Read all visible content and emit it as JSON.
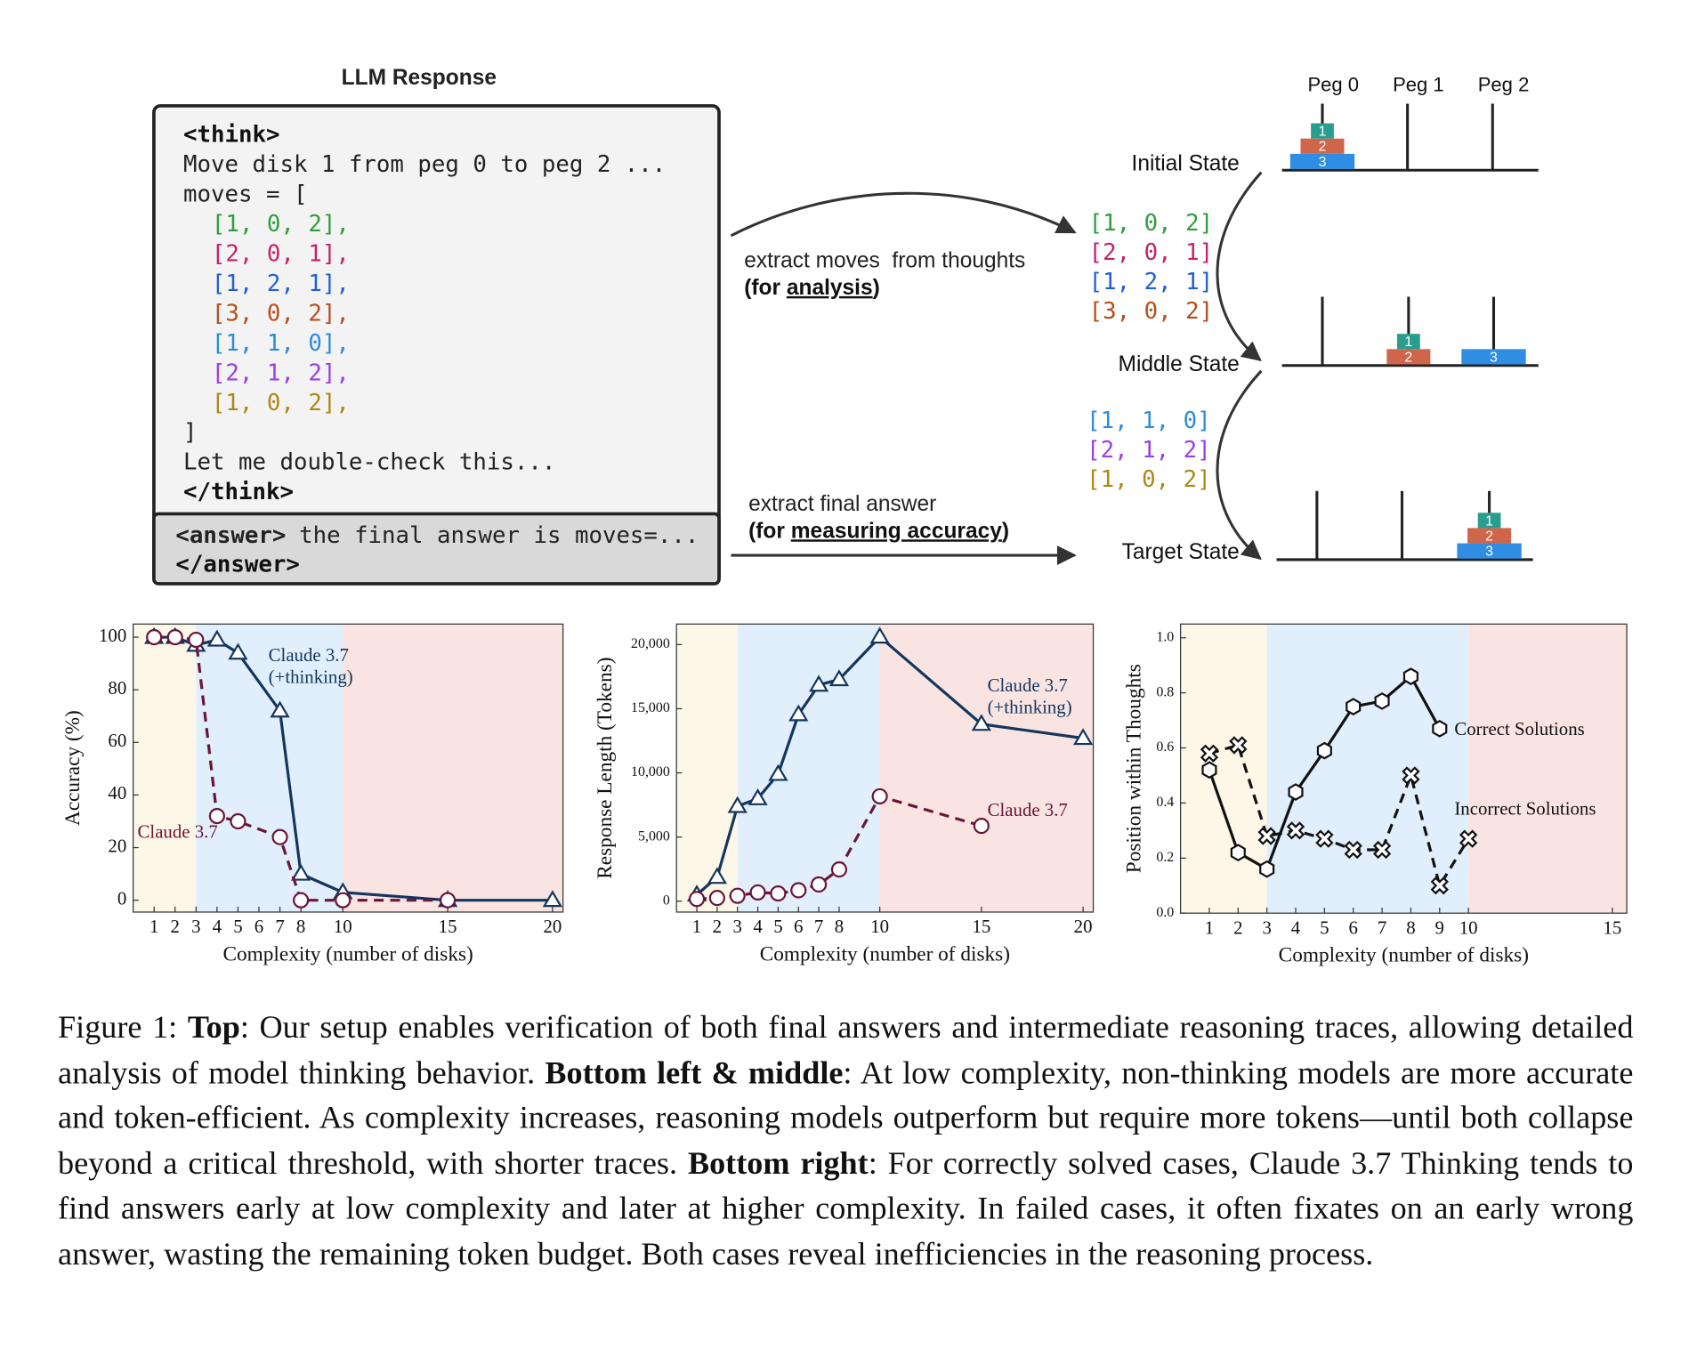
{
  "llm_response": {
    "title": "LLM Response",
    "think_open": "<think>",
    "preamble": [
      "Move disk 1 from peg 0 to peg 2 ...",
      "moves = ["
    ],
    "moves": [
      {
        "text": "[1, 0, 2],",
        "color": "#2e9e3e"
      },
      {
        "text": "[2, 0, 1],",
        "color": "#c4236b"
      },
      {
        "text": "[1, 2, 1],",
        "color": "#1f5fd6"
      },
      {
        "text": "[3, 0, 2],",
        "color": "#b4501e"
      },
      {
        "text": "[1, 1, 0],",
        "color": "#2b8ddb"
      },
      {
        "text": "[2, 1, 2],",
        "color": "#9a3fe4"
      },
      {
        "text": "[1, 0, 2],",
        "color": "#ad8813"
      }
    ],
    "postamble": [
      "]",
      "Let me double-check this..."
    ],
    "think_close": "</think>",
    "answer_open": "<answer>",
    "answer_text": "the final answer is moves=...",
    "answer_close": "</answer>"
  },
  "extract_moves": {
    "label": "extract moves  from thoughts",
    "note_prefix": "(for ",
    "note_key": "analysis",
    "note_suffix": ")"
  },
  "extract_answer": {
    "label": "extract final answer",
    "note_prefix": "(for ",
    "note_key": "measuring accuracy",
    "note_suffix": ")"
  },
  "extracted_moves": [
    {
      "text": "[1, 0, 2]",
      "color": "#2e9e3e"
    },
    {
      "text": "[2, 0, 1]",
      "color": "#c4236b"
    },
    {
      "text": "[1, 2, 1]",
      "color": "#1f5fd6"
    },
    {
      "text": "[3, 0, 2]",
      "color": "#b4501e"
    },
    {
      "text": "[1, 1, 0]",
      "color": "#2b8ddb"
    },
    {
      "text": "[2, 1, 2]",
      "color": "#9a3fe4"
    },
    {
      "text": "[1, 0, 2]",
      "color": "#ad8813"
    }
  ],
  "hanoi": {
    "pegs": [
      "Peg 0",
      "Peg 1",
      "Peg 2"
    ],
    "disk_colors": {
      "1": "#2a9d8f",
      "2": "#cf654b",
      "3": "#2f8de4"
    },
    "states": [
      {
        "name": "Initial State",
        "disks": [
          [
            3,
            2,
            1
          ],
          [],
          []
        ]
      },
      {
        "name": "Middle State",
        "disks": [
          [],
          [
            2,
            1
          ],
          [
            3
          ]
        ]
      },
      {
        "name": "Target State",
        "disks": [
          [],
          [],
          [
            3,
            2,
            1
          ]
        ]
      }
    ]
  },
  "chart_data": [
    {
      "type": "line",
      "xlabel": "Complexity (number of disks)",
      "ylabel": "Accuracy (%)",
      "xlim": [
        0,
        20.5
      ],
      "ylim": [
        -4.5,
        105
      ],
      "xticks": [
        1,
        2,
        3,
        4,
        5,
        6,
        7,
        8,
        10,
        15,
        20
      ],
      "yticks": [
        0,
        20,
        40,
        60,
        80,
        100
      ],
      "shaded_regions": [
        {
          "from": 0,
          "to": 3,
          "color": "#fdf7e7"
        },
        {
          "from": 3,
          "to": 10,
          "color": "#e0effb"
        },
        {
          "from": 10,
          "to": 20.5,
          "color": "#f9e4e2"
        }
      ],
      "series": [
        {
          "label_lines": [
            "Claude 3.7",
            "(+thinking)"
          ],
          "color": "#14365e",
          "marker": "triangle",
          "dashed": false,
          "x": [
            1,
            2,
            3,
            4,
            5,
            7,
            8,
            10,
            15,
            20
          ],
          "values": [
            100,
            100,
            97,
            99,
            94,
            72,
            10,
            3,
            0,
            0
          ]
        },
        {
          "label_lines": [
            "Claude 3.7"
          ],
          "color": "#6b1538",
          "marker": "circle",
          "dashed": true,
          "x": [
            1,
            2,
            3,
            4,
            5,
            7,
            8,
            10,
            15
          ],
          "values": [
            100,
            100,
            99,
            32,
            30,
            24,
            0,
            0,
            0
          ]
        }
      ]
    },
    {
      "type": "line",
      "xlabel": "Complexity (number of disks)",
      "ylabel": "Response Length (Tokens)",
      "xlim": [
        0,
        20.5
      ],
      "ylim": [
        -850,
        21600
      ],
      "xticks": [
        1,
        2,
        3,
        4,
        5,
        6,
        7,
        8,
        10,
        15,
        20
      ],
      "yticks": [
        0,
        {
          "value": 5000,
          "label": "5,000"
        },
        {
          "value": 10000,
          "label": "10,000"
        },
        {
          "value": 15000,
          "label": "15,000"
        },
        {
          "value": 20000,
          "label": "20,000"
        }
      ],
      "shaded_regions": [
        {
          "from": 0,
          "to": 3,
          "color": "#fdf7e7"
        },
        {
          "from": 3,
          "to": 10,
          "color": "#e0effb"
        },
        {
          "from": 10,
          "to": 20.5,
          "color": "#f9e4e2"
        }
      ],
      "series": [
        {
          "label_lines": [
            "Claude 3.7",
            "(+thinking)"
          ],
          "color": "#14365e",
          "marker": "triangle",
          "dashed": false,
          "x": [
            1,
            2,
            3,
            4,
            5,
            6,
            7,
            8,
            10,
            15,
            20
          ],
          "values": [
            500,
            1870,
            7400,
            8000,
            9900,
            14550,
            16850,
            17280,
            20600,
            13800,
            12700
          ]
        },
        {
          "label_lines": [
            "Claude 3.7"
          ],
          "color": "#6b1538",
          "marker": "circle",
          "dashed": true,
          "x": [
            1,
            2,
            3,
            4,
            5,
            6,
            7,
            8,
            10,
            15
          ],
          "values": [
            170,
            250,
            420,
            680,
            600,
            850,
            1300,
            2470,
            8170,
            5870
          ]
        }
      ]
    },
    {
      "type": "line",
      "xlabel": "Complexity (number of disks)",
      "ylabel": "Position within Thoughts",
      "xlim": [
        0,
        15.5
      ],
      "ylim": [
        0,
        1.05
      ],
      "xticks": [
        1,
        2,
        3,
        4,
        5,
        6,
        7,
        8,
        9,
        10,
        15
      ],
      "yticks": [
        {
          "value": 0,
          "label": "0.0"
        },
        0.2,
        0.4,
        0.6,
        0.8,
        {
          "value": 1,
          "label": "1.0"
        }
      ],
      "shaded_regions": [
        {
          "from": 0,
          "to": 3,
          "color": "#fdf7e7"
        },
        {
          "from": 3,
          "to": 10,
          "color": "#e0effb"
        },
        {
          "from": 10,
          "to": 15.5,
          "color": "#f9e4e2"
        }
      ],
      "series": [
        {
          "label_lines": [
            "Correct Solutions"
          ],
          "color": "#111111",
          "marker": "hexagon",
          "dashed": false,
          "x": [
            1,
            2,
            3,
            4,
            5,
            6,
            7,
            8,
            9
          ],
          "values": [
            0.52,
            0.22,
            0.16,
            0.44,
            0.59,
            0.75,
            0.77,
            0.86,
            0.67
          ]
        },
        {
          "label_lines": [
            "Incorrect Solutions"
          ],
          "color": "#111111",
          "marker": "x",
          "dashed": true,
          "x": [
            1,
            2,
            3,
            4,
            5,
            6,
            7,
            8,
            9,
            10
          ],
          "values": [
            0.58,
            0.61,
            0.28,
            0.3,
            0.27,
            0.23,
            0.23,
            0.5,
            0.1,
            0.27
          ]
        }
      ]
    }
  ],
  "caption": [
    {
      "text": "Figure 1: ",
      "bold": false
    },
    {
      "text": "Top",
      "bold": true
    },
    {
      "text": ": Our setup enables verification of both final answers and intermediate reasoning traces, allowing detailed analysis of model thinking behavior. ",
      "bold": false
    },
    {
      "text": "Bottom left & middle",
      "bold": true
    },
    {
      "text": ": At low complexity, non-thinking models are more accurate and token-efficient. As complexity increases, reasoning models outperform but require more tokens—until both collapse beyond a critical threshold, with shorter traces. ",
      "bold": false
    },
    {
      "text": "Bottom right",
      "bold": true
    },
    {
      "text": ": For correctly solved cases, Claude 3.7 Thinking tends to find answers early at low complexity and later at higher complexity. In failed cases, it often fixates on an early wrong answer, wasting the remaining token budget. Both cases reveal inefficiencies in the reasoning process.",
      "bold": false
    }
  ]
}
